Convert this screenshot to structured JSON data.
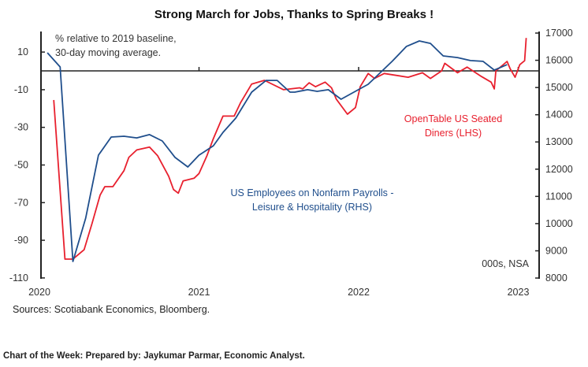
{
  "chart_data": {
    "type": "line",
    "title": "Strong March for Jobs, Thanks to Spring Breaks !",
    "annotation_top": [
      "% relative to 2019 baseline,",
      "30-day moving average."
    ],
    "units_note": "000s, NSA",
    "sources": "Sources: Scotiabank Economics, Bloomberg.",
    "footer": "Chart of the Week: Prepared by: Jaykumar Parmar, Economic Analyst.",
    "x_ticks": [
      "2020",
      "2021",
      "2022",
      "2023"
    ],
    "x_tick_values": [
      2020,
      2021,
      2022,
      2023
    ],
    "xlim": [
      2020,
      2023.2
    ],
    "y_left": {
      "ticks": [
        "10",
        "-10",
        "-30",
        "-50",
        "-70",
        "-90",
        "-110"
      ],
      "tick_values": [
        10,
        -10,
        -30,
        -50,
        -70,
        -90,
        -110
      ],
      "ylim": [
        -110,
        20
      ]
    },
    "y_right": {
      "ticks": [
        "17000",
        "16000",
        "15000",
        "14000",
        "13000",
        "12000",
        "11000",
        "10000",
        "9000",
        "8000"
      ],
      "tick_values": [
        17000,
        16000,
        15000,
        14000,
        13000,
        12000,
        11000,
        10000,
        9000,
        8000
      ],
      "ylim": [
        8000,
        17000
      ]
    },
    "grid": false,
    "series": [
      {
        "name": "OpenTable US Seated Diners (LHS)",
        "label_lines": [
          "OpenTable US Seated",
          "Diners (LHS)"
        ],
        "axis": "left",
        "color": "#e8202e",
        "x": [
          2020.09,
          2020.16,
          2020.21,
          2020.28,
          2020.33,
          2020.38,
          2020.41,
          2020.46,
          2020.53,
          2020.56,
          2020.61,
          2020.69,
          2020.74,
          2020.81,
          2020.84,
          2020.87,
          2020.9,
          2020.97,
          2021.0,
          2021.05,
          2021.09,
          2021.15,
          2021.22,
          2021.26,
          2021.33,
          2021.41,
          2021.53,
          2021.63,
          2021.65,
          2021.69,
          2021.73,
          2021.79,
          2021.83,
          2021.86,
          2021.93,
          2021.98,
          2022.01,
          2022.06,
          2022.1,
          2022.16,
          2022.31,
          2022.4,
          2022.45,
          2022.52,
          2022.54,
          2022.62,
          2022.68,
          2022.77,
          2022.83,
          2022.85,
          2022.86,
          2022.93,
          2022.95,
          2022.98,
          2023.01,
          2023.04,
          2023.05
        ],
        "y": [
          -15.5,
          -100,
          -100,
          -95,
          -81,
          -66,
          -61.5,
          -61.5,
          -53,
          -46,
          -42,
          -40.5,
          -45,
          -56,
          -63,
          -65,
          -58.5,
          -57,
          -54.5,
          -45,
          -36,
          -24,
          -24,
          -17,
          -7,
          -5,
          -10,
          -9,
          -9.6,
          -6.3,
          -8.4,
          -6,
          -9,
          -15,
          -23,
          -19.5,
          -8.4,
          -1.4,
          -4,
          -1.4,
          -3.4,
          -1,
          -4,
          0,
          4,
          -1,
          2,
          -3,
          -6,
          -9.6,
          0,
          5,
          1,
          -3.4,
          3.3,
          5.4,
          17.5
        ]
      },
      {
        "name": "US Employees on Nonfarm Payrolls - Leisure & Hospitality (RHS)",
        "label_lines": [
          "US Employees on Nonfarm Payrolls -",
          "Leisure & Hospitality (RHS)"
        ],
        "axis": "right",
        "color": "#1f4e8c",
        "x": [
          2020.05,
          2020.13,
          2020.21,
          2020.29,
          2020.37,
          2020.45,
          2020.53,
          2020.61,
          2020.69,
          2020.77,
          2020.85,
          2020.93,
          2021.0,
          2021.09,
          2021.15,
          2021.23,
          2021.33,
          2021.42,
          2021.49,
          2021.57,
          2021.6,
          2021.68,
          2021.74,
          2021.81,
          2021.89,
          2022.06,
          2022.21,
          2022.3,
          2022.38,
          2022.45,
          2022.53,
          2022.62,
          2022.7,
          2022.78,
          2022.85,
          2022.93
        ],
        "y": [
          16277,
          15756,
          8609,
          10200,
          12515,
          13180,
          13210,
          13150,
          13270,
          13035,
          12430,
          12080,
          12515,
          12860,
          13350,
          13875,
          14830,
          15260,
          15260,
          14830,
          14830,
          14920,
          14860,
          14920,
          14570,
          15120,
          15960,
          16510,
          16710,
          16620,
          16160,
          16100,
          15990,
          15960,
          15640,
          15840
        ]
      }
    ]
  }
}
